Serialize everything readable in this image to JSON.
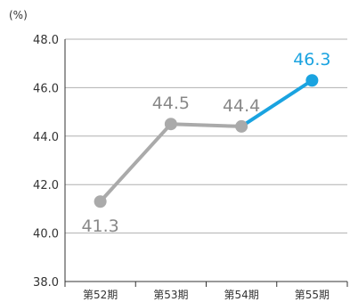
{
  "chart_data": {
    "type": "line",
    "unit_label": "(%)",
    "categories": [
      "第52期",
      "第53期",
      "第54期",
      "第55期"
    ],
    "values": [
      41.3,
      44.5,
      44.4,
      46.3
    ],
    "value_labels": [
      "41.3",
      "44.5",
      "44.4",
      "46.3"
    ],
    "yticks": [
      "48.0",
      "46.0",
      "44.0",
      "42.0",
      "40.0",
      "38.0"
    ],
    "ylim": [
      38.0,
      48.0
    ],
    "grid": true,
    "colors": {
      "base": "#aaaaaa",
      "highlight": "#1aa3e0",
      "axis": "#333333",
      "grid": "#b0b0b0",
      "label": "#888888"
    }
  }
}
